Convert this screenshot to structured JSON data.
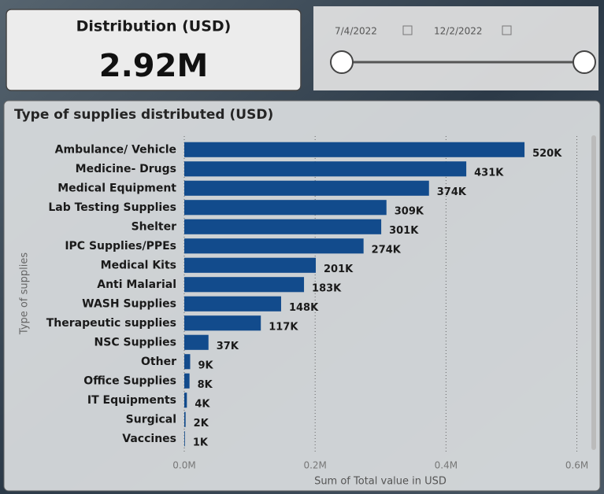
{
  "card": {
    "title": "Distribution (USD)",
    "value": "2.92M"
  },
  "slicer": {
    "start": "7/4/2022",
    "end": "12/2/2022"
  },
  "chart_data": {
    "type": "bar",
    "orientation": "horizontal",
    "title": "Type of supplies distributed (USD)",
    "y_label": "Type of supplies",
    "x_label": "Sum of Total value in USD",
    "categories": [
      "Ambulance/ Vehicle",
      "Medicine- Drugs",
      "Medical Equipment",
      "Lab Testing Supplies",
      "Shelter",
      "IPC Supplies/PPEs",
      "Medical Kits",
      "Anti Malarial",
      "WASH Supplies",
      "Therapeutic supplies",
      "NSC Supplies",
      "Other",
      "Office Supplies",
      "IT Equipments",
      "Surgical",
      "Vaccines"
    ],
    "values": [
      520000,
      431000,
      374000,
      309000,
      301000,
      274000,
      201000,
      183000,
      148000,
      117000,
      37000,
      9000,
      8000,
      4000,
      2000,
      1000
    ],
    "value_labels": [
      "520K",
      "431K",
      "374K",
      "309K",
      "301K",
      "274K",
      "201K",
      "183K",
      "148K",
      "117K",
      "37K",
      "9K",
      "8K",
      "4K",
      "2K",
      "1K"
    ],
    "color": "#124b8c",
    "xlim": [
      0,
      615000
    ],
    "xticks": [
      {
        "value": 0,
        "label": "0.0M"
      },
      {
        "value": 200000,
        "label": "0.2M"
      },
      {
        "value": 400000,
        "label": "0.4M"
      },
      {
        "value": 600000,
        "label": "0.6M"
      }
    ],
    "grid": true
  }
}
